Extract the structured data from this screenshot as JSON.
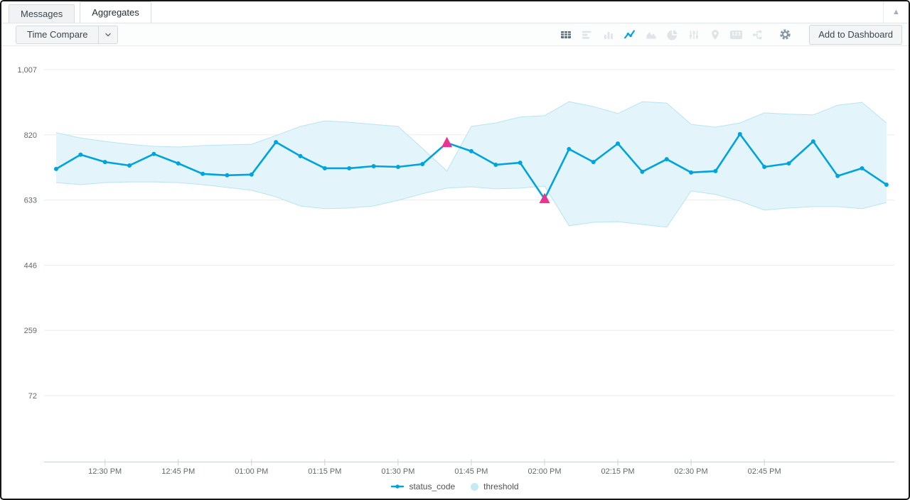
{
  "window": {
    "collapse_icon": "▲"
  },
  "tabs": [
    {
      "label": "Messages",
      "active": false
    },
    {
      "label": "Aggregates",
      "active": true
    }
  ],
  "toolbar": {
    "time_compare_label": "Time Compare",
    "add_to_dashboard_label": "Add to Dashboard",
    "single_value_icon_text": "123",
    "view_icons": [
      "table-view",
      "bar-chart-horizontal",
      "column-chart",
      "line-chart",
      "area-chart",
      "pie-chart",
      "box-plot-sliders",
      "map-pin",
      "single-value",
      "flow-diagram"
    ],
    "active_view": "line-chart"
  },
  "chart_data": {
    "type": "line",
    "title": "",
    "x": [
      "12:20 PM",
      "12:25 PM",
      "12:30 PM",
      "12:35 PM",
      "12:40 PM",
      "12:45 PM",
      "12:50 PM",
      "12:55 PM",
      "01:00 PM",
      "01:05 PM",
      "01:10 PM",
      "01:15 PM",
      "01:20 PM",
      "01:25 PM",
      "01:30 PM",
      "01:35 PM",
      "01:40 PM",
      "01:45 PM",
      "01:50 PM",
      "01:55 PM",
      "02:00 PM",
      "02:05 PM",
      "02:10 PM",
      "02:15 PM",
      "02:20 PM",
      "02:25 PM",
      "02:30 PM",
      "02:35 PM",
      "02:40 PM",
      "02:45 PM",
      "02:50 PM",
      "02:55 PM",
      "03:00 PM",
      "03:05 PM",
      "03:10 PM"
    ],
    "series": [
      {
        "name": "status_code",
        "type": "line",
        "values": [
          722,
          763,
          742,
          732,
          765,
          738,
          708,
          704,
          706,
          799,
          759,
          724,
          724,
          730,
          728,
          736,
          797,
          773,
          734,
          740,
          636,
          779,
          742,
          795,
          714,
          750,
          712,
          716,
          822,
          728,
          738,
          801,
          702,
          724,
          677
        ],
        "outlier_indices": [
          16,
          20
        ]
      },
      {
        "name": "threshold",
        "type": "band",
        "upper": [
          826,
          811,
          801,
          793,
          787,
          785,
          789,
          791,
          793,
          818,
          844,
          860,
          856,
          850,
          844,
          781,
          716,
          844,
          854,
          871,
          875,
          915,
          901,
          881,
          915,
          911,
          850,
          842,
          854,
          883,
          879,
          877,
          905,
          913,
          854
        ],
        "lower": [
          683,
          677,
          683,
          685,
          685,
          683,
          677,
          669,
          661,
          642,
          616,
          608,
          610,
          616,
          632,
          651,
          667,
          671,
          665,
          667,
          673,
          559,
          569,
          571,
          563,
          555,
          659,
          649,
          630,
          604,
          610,
          614,
          614,
          608,
          626
        ]
      }
    ],
    "x_axis": {
      "ticks": [
        {
          "index": 2,
          "label": "12:30 PM"
        },
        {
          "index": 5,
          "label": "12:45 PM"
        },
        {
          "index": 8,
          "label": "01:00 PM"
        },
        {
          "index": 11,
          "label": "01:15 PM"
        },
        {
          "index": 14,
          "label": "01:30 PM"
        },
        {
          "index": 17,
          "label": "01:45 PM"
        },
        {
          "index": 20,
          "label": "02:00 PM"
        },
        {
          "index": 23,
          "label": "02:15 PM"
        },
        {
          "index": 26,
          "label": "02:30 PM"
        },
        {
          "index": 29,
          "label": "02:45 PM"
        }
      ]
    },
    "y_axis": {
      "ticks": [
        {
          "value": 1007,
          "label": "1,007"
        },
        {
          "value": 820,
          "label": "820"
        },
        {
          "value": 633,
          "label": "633"
        },
        {
          "value": 446,
          "label": "446"
        },
        {
          "value": 259,
          "label": "259"
        },
        {
          "value": 72,
          "label": "72"
        }
      ]
    },
    "legend": [
      {
        "label": "status_code",
        "marker": "line"
      },
      {
        "label": "threshold",
        "marker": "circle"
      }
    ],
    "colors": {
      "line": "#00a4dd",
      "band_fill": "#e3f4fa",
      "band_edge": "#b7e5f1",
      "band_swatch": "#c6eaf4",
      "outlier": "#e9358f",
      "grid": "#ececec",
      "axis": "#ccd1d4",
      "tick_text": "#63686c"
    },
    "grid": true,
    "legend_position": "bottom"
  }
}
